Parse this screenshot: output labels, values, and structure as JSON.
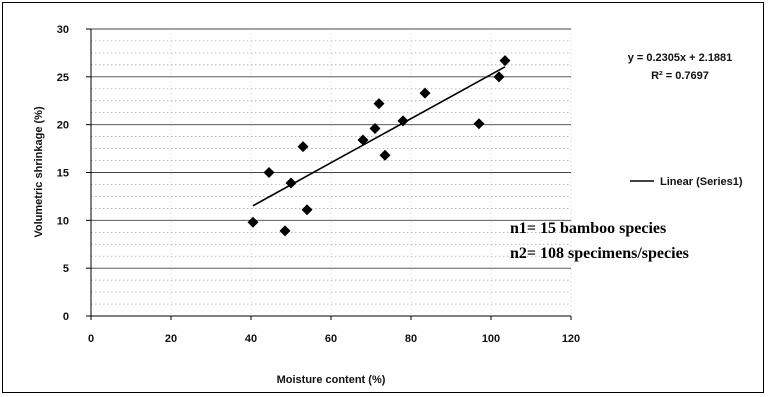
{
  "chart_data": {
    "type": "scatter",
    "xlabel": "Moisture content (%)",
    "ylabel": "Volumetric shrinkage (%)",
    "xlim": [
      0,
      120
    ],
    "ylim": [
      0,
      30
    ],
    "xticks": [
      "0",
      "20",
      "40",
      "60",
      "80",
      "100",
      "120"
    ],
    "yticks": [
      "0",
      "5",
      "10",
      "15",
      "20",
      "25",
      "30"
    ],
    "grid": true,
    "series": [
      {
        "x": [
          40.5,
          44.5,
          48.5,
          50,
          53,
          54,
          68,
          71,
          72,
          73.5,
          78,
          83.5,
          97,
          102,
          103.5
        ],
        "y": [
          9.8,
          15.0,
          8.9,
          13.9,
          17.7,
          11.1,
          18.4,
          19.6,
          22.2,
          16.8,
          20.4,
          23.3,
          20.1,
          25.0,
          26.7
        ],
        "color": "#000000"
      }
    ],
    "trendline": {
      "slope": 0.2305,
      "intercept": 2.1881,
      "x_range": [
        40.5,
        103.5
      ],
      "legend_label": "Linear (Series1)",
      "equation_text": "y = 0.2305x + 2.1881",
      "r2_text": "R² = 0.7697"
    },
    "annotations": [
      "n1= 15 bamboo species",
      "n2= 108 specimens/species"
    ]
  }
}
